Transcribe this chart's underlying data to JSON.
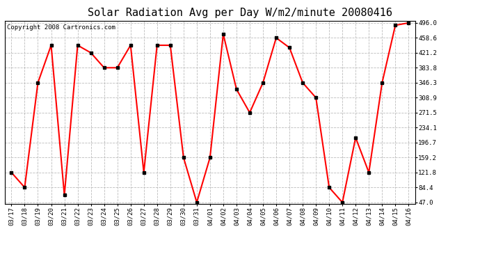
{
  "title": "Solar Radiation Avg per Day W/m2/minute 20080416",
  "copyright": "Copyright 2008 Cartronics.com",
  "dates": [
    "03/17",
    "03/18",
    "03/19",
    "03/20",
    "03/21",
    "03/22",
    "03/23",
    "03/24",
    "03/25",
    "03/26",
    "03/27",
    "03/28",
    "03/29",
    "03/30",
    "03/31",
    "04/01",
    "04/02",
    "04/03",
    "04/04",
    "04/05",
    "04/06",
    "04/07",
    "04/08",
    "04/09",
    "04/10",
    "04/11",
    "04/12",
    "04/13",
    "04/14",
    "04/15",
    "04/16"
  ],
  "values": [
    121.8,
    84.4,
    346.3,
    440.0,
    65.0,
    440.0,
    421.2,
    383.8,
    383.8,
    440.0,
    121.8,
    440.0,
    440.0,
    159.2,
    47.0,
    159.2,
    468.0,
    330.0,
    271.5,
    346.3,
    458.6,
    434.0,
    346.3,
    308.9,
    84.4,
    47.0,
    209.0,
    121.8,
    346.3,
    490.0,
    496.0
  ],
  "line_color": "#ff0000",
  "marker": "s",
  "marker_color": "#000000",
  "marker_size": 2.5,
  "bg_color": "#ffffff",
  "plot_bg_color": "#ffffff",
  "grid_color": "#bbbbbb",
  "grid_style": "--",
  "yticks": [
    47.0,
    84.4,
    121.8,
    159.2,
    196.7,
    234.1,
    271.5,
    308.9,
    346.3,
    383.8,
    421.2,
    458.6,
    496.0
  ],
  "ymin": 47.0,
  "ymax": 496.0,
  "title_fontsize": 11,
  "copyright_fontsize": 6.5,
  "tick_fontsize": 6.5,
  "line_width": 1.5
}
